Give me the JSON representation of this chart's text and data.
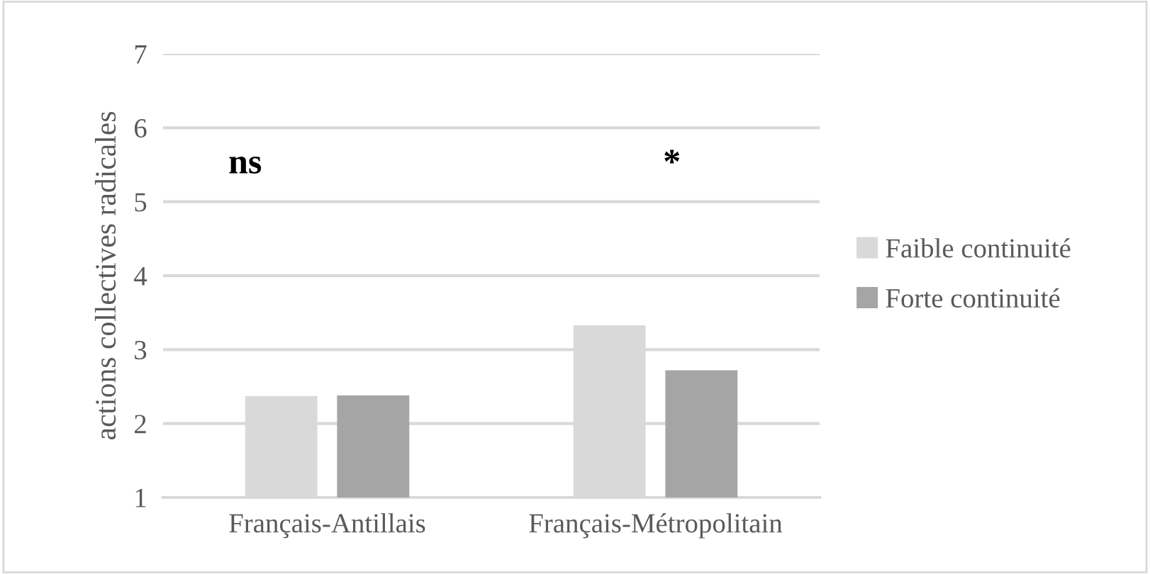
{
  "chart_data": {
    "type": "bar",
    "ylabel": "actions collectives radicales",
    "categories": [
      "Français-Antillais",
      "Français-Métropolitain"
    ],
    "series": [
      {
        "name": "Faible continuité",
        "color": "#d9d9d9",
        "values": [
          2.37,
          3.33
        ]
      },
      {
        "name": "Forte continuité",
        "color": "#a5a5a5",
        "values": [
          2.38,
          2.72
        ]
      }
    ],
    "ylim": [
      1,
      7
    ],
    "yticks": [
      1,
      2,
      3,
      4,
      5,
      6,
      7
    ],
    "grid": "y",
    "legend": "right",
    "annotations": [
      "ns",
      "*"
    ]
  }
}
